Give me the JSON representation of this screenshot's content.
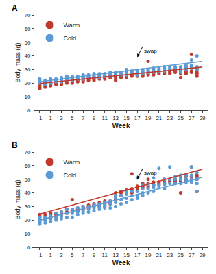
{
  "chart_data": [
    {
      "type": "scatter",
      "label": "A",
      "xlabel": "Week",
      "ylabel": "Body mass (g)",
      "xlim": [
        -2,
        30
      ],
      "ylim": [
        0,
        70
      ],
      "xticks": [
        -1,
        1,
        3,
        5,
        7,
        9,
        11,
        13,
        15,
        17,
        19,
        21,
        23,
        25,
        27,
        29
      ],
      "yticks": [
        0,
        10,
        20,
        30,
        40,
        50,
        60,
        70
      ],
      "grid": false,
      "legend": "upper left",
      "series": [
        {
          "name": "Warm",
          "color": "#c0392b",
          "marker": "circle",
          "x": [
            -1,
            -1,
            -1,
            -1,
            0,
            0,
            0,
            0,
            1,
            1,
            1,
            1,
            2,
            2,
            2,
            3,
            3,
            3,
            3,
            4,
            4,
            4,
            5,
            5,
            5,
            5,
            6,
            6,
            6,
            7,
            7,
            7,
            7,
            8,
            8,
            8,
            9,
            9,
            9,
            10,
            10,
            10,
            11,
            11,
            11,
            12,
            12,
            12,
            13,
            13,
            13,
            14,
            14,
            14,
            15,
            15,
            15,
            16,
            16,
            16,
            17,
            17,
            17,
            18,
            18,
            18,
            19,
            19,
            19,
            19,
            20,
            20,
            20,
            21,
            21,
            21,
            22,
            22,
            22,
            23,
            23,
            23,
            24,
            24,
            24,
            25,
            25,
            25,
            25,
            26,
            26,
            26,
            26,
            27,
            27,
            27,
            28,
            28,
            28,
            28
          ],
          "values": [
            16,
            17,
            18,
            19,
            17,
            18,
            19,
            20,
            18,
            19,
            20,
            21,
            19,
            20,
            21,
            19,
            20,
            21,
            22,
            20,
            21,
            22,
            20,
            21,
            22,
            23,
            21,
            22,
            23,
            21,
            22,
            23,
            24,
            22,
            23,
            24,
            22,
            23,
            24,
            23,
            24,
            25,
            23,
            24,
            25,
            24,
            25,
            26,
            22,
            24,
            25,
            24,
            25,
            26,
            24,
            25,
            26,
            25,
            26,
            27,
            25,
            26,
            27,
            25,
            26,
            27,
            26,
            27,
            28,
            36,
            26,
            27,
            28,
            27,
            28,
            29,
            27,
            28,
            29,
            27,
            28,
            29,
            28,
            29,
            30,
            24,
            27,
            28,
            29,
            27,
            28,
            29,
            30,
            28,
            29,
            41,
            25,
            27,
            28,
            30
          ],
          "fit": {
            "line_style": "solid",
            "x": [
              -1,
              29
            ],
            "values": [
              19.8,
              31.8
            ]
          }
        },
        {
          "name": "Cold",
          "color": "#5b9bd5",
          "marker": "circle",
          "x": [
            -1,
            -1,
            -1,
            -1,
            0,
            0,
            0,
            0,
            1,
            1,
            1,
            1,
            2,
            2,
            2,
            3,
            3,
            3,
            3,
            4,
            4,
            4,
            4,
            5,
            5,
            5,
            5,
            6,
            6,
            6,
            7,
            7,
            7,
            7,
            8,
            8,
            8,
            9,
            9,
            9,
            9,
            10,
            10,
            10,
            10,
            11,
            11,
            11,
            12,
            12,
            12,
            12,
            13,
            13,
            13,
            14,
            14,
            14,
            15,
            15,
            15,
            15,
            16,
            16,
            16,
            17,
            17,
            17,
            17,
            18,
            18,
            18,
            18,
            19,
            19,
            19,
            20,
            20,
            20,
            20,
            21,
            21,
            21,
            22,
            22,
            22,
            22,
            23,
            23,
            23,
            24,
            24,
            24,
            25,
            25,
            25,
            25,
            26,
            26,
            26,
            26,
            27,
            27,
            27,
            27,
            28,
            28,
            28,
            28
          ],
          "values": [
            20,
            21,
            22,
            23,
            19,
            20,
            21,
            22,
            20,
            21,
            22,
            23,
            21,
            22,
            23,
            21,
            22,
            23,
            24,
            22,
            23,
            24,
            25,
            22,
            23,
            24,
            25,
            23,
            24,
            25,
            23,
            24,
            25,
            26,
            24,
            25,
            26,
            24,
            25,
            26,
            27,
            24,
            25,
            26,
            27,
            25,
            26,
            27,
            25,
            26,
            27,
            28,
            26,
            27,
            28,
            26,
            27,
            28,
            26,
            27,
            28,
            30,
            27,
            28,
            29,
            26,
            27,
            28,
            29,
            27,
            28,
            29,
            30,
            28,
            29,
            30,
            28,
            29,
            30,
            31,
            29,
            30,
            31,
            29,
            30,
            31,
            32,
            30,
            31,
            32,
            30,
            31,
            32,
            28,
            30,
            31,
            32,
            30,
            31,
            32,
            33,
            31,
            32,
            33,
            37,
            30,
            31,
            32,
            40
          ],
          "fit": {
            "line_style": "solid",
            "x": [
              -1,
              29
            ],
            "values": [
              21.0,
              36.0
            ]
          }
        }
      ],
      "annotations": [
        {
          "text": "swap",
          "x": 17,
          "y": 39,
          "text_x": 18,
          "text_y": 47
        }
      ]
    },
    {
      "type": "scatter",
      "label": "B",
      "xlabel": "Week",
      "ylabel": "Body mass (g)",
      "xlim": [
        -2,
        30
      ],
      "ylim": [
        0,
        70
      ],
      "xticks": [
        -1,
        1,
        3,
        5,
        7,
        9,
        11,
        13,
        15,
        17,
        19,
        21,
        23,
        25,
        27,
        29
      ],
      "yticks": [
        0,
        10,
        20,
        30,
        40,
        50,
        60,
        70
      ],
      "grid": false,
      "legend": "upper left",
      "series": [
        {
          "name": "Warm",
          "color": "#c0392b",
          "marker": "circle",
          "x": [
            -1,
            -1,
            -1,
            -1,
            0,
            0,
            0,
            1,
            1,
            1,
            1,
            2,
            2,
            2,
            3,
            3,
            3,
            4,
            4,
            4,
            5,
            5,
            5,
            5,
            6,
            6,
            6,
            7,
            7,
            7,
            8,
            8,
            8,
            9,
            9,
            9,
            10,
            10,
            10,
            11,
            11,
            11,
            11,
            12,
            12,
            12,
            13,
            13,
            13,
            13,
            14,
            14,
            14,
            15,
            15,
            15,
            16,
            16,
            16,
            16,
            17,
            17,
            17,
            18,
            18,
            18,
            18,
            19,
            19,
            19,
            19,
            20,
            20,
            20,
            21,
            21,
            21,
            22,
            22,
            22,
            23,
            23,
            23,
            24,
            24,
            24,
            25,
            25,
            25,
            25,
            26,
            26,
            26,
            26,
            27,
            27,
            27,
            28,
            28,
            28,
            28
          ],
          "values": [
            18,
            20,
            22,
            24,
            20,
            22,
            24,
            21,
            22,
            24,
            25,
            22,
            24,
            25,
            23,
            25,
            26,
            25,
            26,
            28,
            26,
            27,
            28,
            35,
            27,
            28,
            29,
            28,
            29,
            30,
            29,
            30,
            31,
            30,
            31,
            32,
            30,
            32,
            33,
            30,
            32,
            33,
            34,
            32,
            33,
            34,
            35,
            36,
            38,
            40,
            38,
            40,
            41,
            40,
            41,
            42,
            40,
            42,
            43,
            54,
            42,
            44,
            45,
            44,
            45,
            46,
            47,
            44,
            45,
            47,
            50,
            45,
            46,
            48,
            46,
            47,
            48,
            47,
            48,
            50,
            48,
            49,
            50,
            48,
            49,
            50,
            40,
            49,
            50,
            52,
            49,
            50,
            52,
            53,
            50,
            52,
            59,
            41,
            50,
            52,
            53
          ],
          "fit": {
            "line_style": "solid",
            "x": [
              -1,
              29
            ],
            "values": [
              24.4,
              57.4
            ]
          }
        },
        {
          "name": "Cold",
          "color": "#5b9bd5",
          "marker": "circle",
          "x": [
            -1,
            -1,
            -1,
            -1,
            0,
            0,
            0,
            1,
            1,
            1,
            2,
            2,
            2,
            3,
            3,
            3,
            4,
            4,
            4,
            5,
            5,
            5,
            6,
            6,
            6,
            7,
            7,
            7,
            7,
            8,
            8,
            8,
            9,
            9,
            9,
            10,
            10,
            10,
            11,
            11,
            11,
            12,
            12,
            12,
            13,
            13,
            13,
            13,
            14,
            14,
            14,
            15,
            15,
            15,
            15,
            16,
            16,
            16,
            17,
            17,
            17,
            17,
            18,
            18,
            18,
            18,
            19,
            19,
            19,
            20,
            20,
            20,
            20,
            21,
            21,
            21,
            22,
            22,
            22,
            22,
            23,
            23,
            23,
            24,
            24,
            24,
            25,
            25,
            25,
            26,
            26,
            26,
            27,
            27,
            27,
            27,
            28,
            28,
            28,
            28
          ],
          "values": [
            17,
            19,
            20,
            22,
            18,
            20,
            22,
            19,
            21,
            23,
            20,
            22,
            25,
            21,
            23,
            26,
            22,
            25,
            28,
            22,
            25,
            28,
            24,
            26,
            29,
            25,
            27,
            29,
            30,
            26,
            28,
            30,
            27,
            29,
            31,
            28,
            30,
            32,
            29,
            31,
            33,
            29,
            32,
            34,
            30,
            33,
            36,
            38,
            32,
            35,
            38,
            33,
            36,
            39,
            41,
            35,
            38,
            41,
            36,
            38,
            41,
            51,
            38,
            40,
            43,
            46,
            40,
            43,
            46,
            41,
            44,
            46,
            51,
            44,
            46,
            58,
            43,
            46,
            47,
            50,
            47,
            50,
            59,
            47,
            50,
            52,
            47,
            50,
            53,
            48,
            50,
            53,
            48,
            50,
            53,
            59,
            41,
            47,
            50,
            55
          ],
          "fit": {
            "line_style": "solid",
            "x": [
              -1,
              29
            ],
            "values": [
              19.95,
              51.45
            ]
          }
        }
      ],
      "annotations": [
        {
          "text": "swap",
          "x": 17,
          "y": 50,
          "text_x": 18,
          "text_y": 58
        }
      ]
    }
  ]
}
